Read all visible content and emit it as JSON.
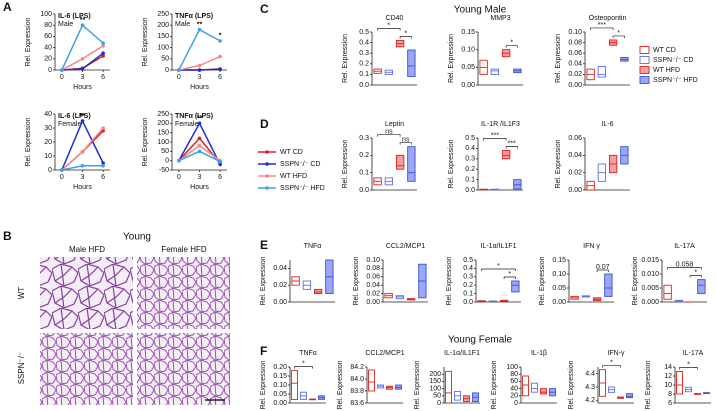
{
  "panel_labels": [
    "A",
    "B",
    "C",
    "D",
    "E",
    "F"
  ],
  "headings": {
    "B": "Young",
    "C": "Young Male",
    "F": "Young Female"
  },
  "histology": {
    "columns": [
      "Male HFD",
      "Female HFD"
    ],
    "rows": [
      "WT",
      "SSPN⁻/⁻"
    ]
  },
  "box_style": {
    "colors": [
      "#e0201b",
      "#5b6ee8",
      "#e0201b",
      "#3d4fd6"
    ],
    "fills": [
      "#ffffff",
      "#ffffff",
      "#f4a0a0",
      "#9aa8f4"
    ]
  },
  "chart_data": [
    {
      "type": "line",
      "title": "IL-6 (LPS)",
      "subtitle": "Male",
      "xlabel": "Hours",
      "ylabel": "Rel. Expression",
      "x": [
        0,
        3,
        6
      ],
      "xlim": [
        -1,
        7
      ],
      "xticks": [
        0,
        3,
        6
      ],
      "ylim": [
        0,
        100
      ],
      "yticks": [
        0,
        20,
        40,
        60,
        80,
        100
      ],
      "series": [
        {
          "name": "WT CD",
          "color": "#e0201b",
          "values": [
            0,
            3,
            25
          ]
        },
        {
          "name": "SSPN⁻/⁻ CD",
          "color": "#1a2fd6",
          "values": [
            0,
            2,
            30
          ]
        },
        {
          "name": "WT HFD",
          "color": "#f08a8a",
          "values": [
            0,
            20,
            43
          ]
        },
        {
          "name": "SSPN⁻/⁻ HFD",
          "color": "#3fa0e8",
          "values": [
            0,
            80,
            48
          ]
        }
      ],
      "annotations": [
        {
          "text": "**",
          "at": 1
        }
      ]
    },
    {
      "type": "line",
      "title": "TNFα (LPS)",
      "subtitle": "Male",
      "xlabel": "Hours",
      "ylabel": "Rel. Expression",
      "x": [
        0,
        3,
        6
      ],
      "xlim": [
        -1,
        7
      ],
      "xticks": [
        0,
        3,
        6
      ],
      "ylim": [
        0,
        250
      ],
      "yticks": [
        0,
        50,
        100,
        150,
        200,
        250
      ],
      "series": [
        {
          "name": "WT CD",
          "color": "#e0201b",
          "values": [
            0,
            0,
            5
          ]
        },
        {
          "name": "SSPN⁻/⁻ CD",
          "color": "#1a2fd6",
          "values": [
            0,
            0,
            3
          ]
        },
        {
          "name": "WT HFD",
          "color": "#f08a8a",
          "values": [
            0,
            20,
            60
          ]
        },
        {
          "name": "SSPN⁻/⁻ HFD",
          "color": "#3fa0e8",
          "values": [
            0,
            180,
            130
          ]
        }
      ],
      "annotations": [
        {
          "text": "**",
          "at": 1
        },
        {
          "text": "*",
          "at": 2
        }
      ]
    },
    {
      "type": "line",
      "title": "IL-6 (LPS)",
      "subtitle": "Female",
      "xlabel": "Hours",
      "ylabel": "Rel. Expression",
      "x": [
        0,
        3,
        6
      ],
      "xlim": [
        -1,
        7
      ],
      "xticks": [
        0,
        3,
        6
      ],
      "ylim": [
        0,
        40
      ],
      "yticks": [
        0,
        10,
        20,
        30,
        40
      ],
      "series": [
        {
          "name": "WT CD",
          "color": "#e0201b",
          "values": [
            0,
            13,
            28
          ]
        },
        {
          "name": "SSPN⁻/⁻ CD",
          "color": "#1a2fd6",
          "values": [
            0,
            35,
            5
          ]
        },
        {
          "name": "WT HFD",
          "color": "#f08a8a",
          "values": [
            0,
            13,
            30
          ]
        },
        {
          "name": "SSPN⁻/⁻ HFD",
          "color": "#3fa0e8",
          "values": [
            0,
            3,
            3
          ]
        }
      ],
      "annotations": [
        {
          "text": "**",
          "at": 1
        }
      ]
    },
    {
      "type": "line",
      "title": "TNFα (LPS)",
      "subtitle": "Female",
      "xlabel": "Hours",
      "ylabel": "Rel. Expression",
      "x": [
        0,
        3,
        6
      ],
      "xlim": [
        -1,
        7
      ],
      "xticks": [
        0,
        3,
        6
      ],
      "ylim": [
        -50,
        250
      ],
      "yticks": [
        -50,
        0,
        50,
        100,
        150,
        200,
        250
      ],
      "series": [
        {
          "name": "WT CD",
          "color": "#e0201b",
          "values": [
            0,
            120,
            -15
          ]
        },
        {
          "name": "SSPN⁻/⁻ CD",
          "color": "#1a2fd6",
          "values": [
            0,
            200,
            -20
          ]
        },
        {
          "name": "WT HFD",
          "color": "#f08a8a",
          "values": [
            0,
            80,
            0
          ]
        },
        {
          "name": "SSPN⁻/⁻ HFD",
          "color": "#3fa0e8",
          "values": [
            0,
            50,
            -5
          ]
        }
      ],
      "annotations": [
        {
          "text": "**",
          "at": 1
        }
      ]
    },
    {
      "type": "box",
      "title": "CD40",
      "ylabel": "Rel. Expression",
      "ylim": [
        0,
        0.5
      ],
      "yticks": [
        {
          "value": 0,
          "label": "0.0"
        },
        0.1,
        0.2,
        0.3,
        0.4,
        0.5
      ],
      "boxes": [
        [
          0.11,
          0.13,
          0.15
        ],
        [
          0.1,
          0.12,
          0.14
        ],
        [
          0.36,
          0.39,
          0.42
        ],
        [
          0.08,
          0.18,
          0.33
        ]
      ],
      "annotations": [
        {
          "text": "*",
          "groups": [
            0,
            2
          ]
        },
        {
          "text": "*",
          "groups": [
            2,
            3
          ]
        }
      ]
    },
    {
      "type": "box",
      "title": "MMP3",
      "ylabel": "Rel. Expression",
      "ylim": [
        0,
        0.15
      ],
      "yticks": [
        {
          "value": 0,
          "label": "0.00"
        },
        0.05,
        {
          "value": 0.1,
          "label": "0.10"
        },
        0.15
      ],
      "boxes": [
        [
          0.03,
          0.05,
          0.07
        ],
        [
          0.03,
          0.04,
          0.045
        ],
        [
          0.08,
          0.09,
          0.1
        ],
        [
          0.035,
          0.04,
          0.045
        ]
      ],
      "annotations": [
        {
          "text": "*",
          "groups": [
            2,
            3
          ]
        }
      ]
    },
    {
      "type": "box",
      "title": "Osteopontin",
      "ylabel": "Rel. Expression",
      "ylim": [
        0,
        0.1
      ],
      "yticks": [
        {
          "value": 0,
          "label": "0.00"
        },
        0.02,
        0.04,
        0.06,
        0.08,
        {
          "value": 0.1,
          "label": "0.10"
        }
      ],
      "boxes": [
        [
          0.01,
          0.02,
          0.03
        ],
        [
          0.015,
          0.02,
          0.035
        ],
        [
          0.075,
          0.08,
          0.085
        ],
        [
          0.045,
          0.048,
          0.052
        ]
      ],
      "annotations": [
        {
          "text": "***",
          "groups": [
            0,
            2
          ]
        },
        {
          "text": "*",
          "groups": [
            2,
            3
          ]
        }
      ]
    },
    {
      "type": "box",
      "title": "Leptin",
      "ylabel": "Rel. Expression",
      "ylim": [
        0,
        0.3
      ],
      "yticks": [
        {
          "value": 0,
          "label": "0.0"
        },
        0.1,
        0.2,
        0.3
      ],
      "boxes": [
        [
          0.03,
          0.05,
          0.07
        ],
        [
          0.03,
          0.05,
          0.07
        ],
        [
          0.12,
          0.14,
          0.2
        ],
        [
          0.05,
          0.1,
          0.25
        ]
      ],
      "annotations": [
        {
          "text": "ns",
          "groups": [
            0,
            2
          ]
        },
        {
          "text": "ns",
          "groups": [
            2,
            3
          ]
        }
      ]
    },
    {
      "type": "box",
      "title": "IL-1R /IL1F3",
      "ylabel": "Rel. Expression",
      "ylim": [
        0,
        0.5
      ],
      "yticks": [
        {
          "value": 0,
          "label": "0.0"
        },
        0.1,
        0.2,
        0.3,
        0.4,
        0.5
      ],
      "boxes": [
        [
          0.002,
          0.005,
          0.008
        ],
        [
          0.002,
          0.005,
          0.008
        ],
        [
          0.3,
          0.33,
          0.38
        ],
        [
          0.01,
          0.05,
          0.1
        ]
      ],
      "annotations": [
        {
          "text": "***",
          "groups": [
            0,
            2
          ]
        },
        {
          "text": "***",
          "groups": [
            2,
            3
          ]
        }
      ]
    },
    {
      "type": "box",
      "title": "IL-6",
      "ylabel": "Rel. Expression",
      "ylim": [
        0,
        0.06
      ],
      "yticks": [
        {
          "value": 0,
          "label": "0.00"
        },
        0.02,
        0.04,
        0.06
      ],
      "boxes": [
        [
          0,
          0.005,
          0.01
        ],
        [
          0.01,
          0.02,
          0.03
        ],
        [
          0.02,
          0.03,
          0.04
        ],
        [
          0.03,
          0.04,
          0.05
        ]
      ],
      "annotations": []
    },
    {
      "type": "box",
      "title": "TNFα",
      "ylabel": "Rel. Expression",
      "ylim": [
        0,
        0.05
      ],
      "yticks": [
        {
          "value": 0,
          "label": "0.00"
        },
        0.02,
        0.04
      ],
      "boxes": [
        [
          0.02,
          0.025,
          0.03
        ],
        [
          0.015,
          0.02,
          0.025
        ],
        [
          0.01,
          0.012,
          0.015
        ],
        [
          0.01,
          0.03,
          0.05
        ]
      ],
      "annotations": []
    },
    {
      "type": "box",
      "title": "CCL2/MCP1",
      "ylabel": "Rel. Expression",
      "ylim": [
        0,
        0.1
      ],
      "yticks": [
        {
          "value": 0,
          "label": "0.00"
        },
        0.02,
        0.04,
        0.06,
        0.08,
        {
          "value": 0.1,
          "label": "0.10"
        }
      ],
      "boxes": [
        [
          0.01,
          0.015,
          0.02
        ],
        [
          0.008,
          0.012,
          0.015
        ],
        [
          0.005,
          0.006,
          0.008
        ],
        [
          0.01,
          0.05,
          0.09
        ]
      ],
      "annotations": []
    },
    {
      "type": "box",
      "title": "IL-1α/IL1F1",
      "ylabel": "Rel. Expression",
      "ylim": [
        0,
        0.5
      ],
      "yticks": [
        {
          "value": 0,
          "label": "0.0"
        },
        0.1,
        0.2,
        0.3,
        0.4,
        0.5
      ],
      "boxes": [
        [
          0.005,
          0.01,
          0.015
        ],
        [
          0.008,
          0.01,
          0.012
        ],
        [
          0.01,
          0.015,
          0.02
        ],
        [
          0.12,
          0.2,
          0.25
        ]
      ],
      "annotations": [
        {
          "text": "*",
          "groups": [
            0,
            3
          ]
        },
        {
          "text": "*",
          "groups": [
            2,
            3
          ]
        }
      ]
    },
    {
      "type": "box",
      "title": "IFN γ",
      "ylabel": "Rel. Expression",
      "ylim": [
        0,
        0.15
      ],
      "yticks": [
        {
          "value": 0,
          "label": "0.00"
        },
        0.05,
        {
          "value": 0.1,
          "label": "0.10"
        },
        0.15
      ],
      "boxes": [
        [
          0.01,
          0.015,
          0.02
        ],
        [
          0.018,
          0.02,
          0.022
        ],
        [
          0.005,
          0.01,
          0.015
        ],
        [
          0.02,
          0.05,
          0.1
        ]
      ],
      "annotations": [
        {
          "text": "0.07",
          "groups": [
            2,
            3
          ]
        }
      ]
    },
    {
      "type": "box",
      "title": "IL-17A",
      "ylabel": "Rel. Expression",
      "ylim": [
        0,
        0.015
      ],
      "yticks": [
        {
          "value": 0,
          "label": "0.000"
        },
        0.005,
        {
          "value": 0.01,
          "label": "0.010"
        },
        0.015
      ],
      "boxes": [
        [
          0.001,
          0.003,
          0.006
        ],
        [
          0.0004,
          0.0005,
          0.0006
        ],
        [
          0,
          0,
          0
        ],
        [
          0.003,
          0.006,
          0.008
        ]
      ],
      "annotations": [
        {
          "text": "0.058",
          "groups": [
            0,
            3
          ]
        },
        {
          "text": "*",
          "groups": [
            2,
            3
          ]
        }
      ]
    },
    {
      "type": "box",
      "title": "TNFα",
      "ylabel": "Rel. Expression",
      "ylim": [
        0,
        0.2
      ],
      "yticks": [
        {
          "value": 0,
          "label": "0.00"
        },
        0.05,
        {
          "value": 0.1,
          "label": "0.10"
        },
        0.15,
        {
          "value": 0.2,
          "label": "0.20"
        }
      ],
      "boxes": [
        [
          0.02,
          0.11,
          0.18
        ],
        [
          0.02,
          0.04,
          0.06
        ],
        [
          0.018,
          0.02,
          0.022
        ],
        [
          0.02,
          0.03,
          0.04
        ]
      ],
      "annotations": [
        {
          "text": "*",
          "groups": [
            0,
            2
          ]
        }
      ]
    },
    {
      "type": "box",
      "title": "CCL2/MCP1",
      "ylabel": "Rel. Expression",
      "ylim": [
        83.6,
        84.2
      ],
      "yticks": [
        83.6,
        83.8,
        {
          "value": 84,
          "label": "84.0"
        },
        84.2
      ],
      "boxes": [
        [
          83.8,
          83.95,
          84.15
        ],
        [
          83.85,
          83.88,
          83.9
        ],
        [
          83.83,
          83.86,
          83.88
        ],
        [
          83.83,
          83.86,
          83.9
        ]
      ],
      "annotations": []
    },
    {
      "type": "box",
      "title": "IL-1α/IL1F1",
      "ylabel": "Rel. Expression",
      "ylim": [
        0,
        250
      ],
      "yticks": [
        0,
        50,
        100,
        150,
        200
      ],
      "boxes": [
        [
          0,
          70,
          220
        ],
        [
          20,
          50,
          80
        ],
        [
          10,
          30,
          50
        ],
        [
          10,
          40,
          70
        ]
      ],
      "annotations": []
    },
    {
      "type": "box",
      "title": "IL-1β",
      "ylabel": "Rel. Expression",
      "ylim": [
        0,
        100
      ],
      "yticks": [
        0,
        20,
        40,
        60,
        80,
        100
      ],
      "boxes": [
        [
          20,
          50,
          75
        ],
        [
          30,
          40,
          55
        ],
        [
          25,
          30,
          40
        ],
        [
          20,
          30,
          40
        ]
      ],
      "annotations": []
    },
    {
      "type": "box",
      "title": "IFN-γ",
      "ylabel": "Rel. Expression",
      "ylim": [
        4.18,
        4.45
      ],
      "yticks": [
        4.2,
        4.3,
        4.4
      ],
      "boxes": [
        [
          4.23,
          4.33,
          4.43
        ],
        [
          4.26,
          4.28,
          4.3
        ],
        [
          4.215,
          4.22,
          4.225
        ],
        [
          4.22,
          4.23,
          4.25
        ]
      ],
      "annotations": [
        {
          "text": "*",
          "groups": [
            0,
            2
          ]
        }
      ]
    },
    {
      "type": "box",
      "title": "IL-17A",
      "ylabel": "Rel. Expression",
      "ylim": [
        6,
        14
      ],
      "yticks": [
        6,
        8,
        10,
        12,
        14
      ],
      "boxes": [
        [
          8,
          10,
          13
        ],
        [
          8.5,
          9,
          9.5
        ],
        [
          7.9,
          8,
          8.1
        ],
        [
          8.1,
          8.2,
          8.3
        ]
      ],
      "annotations": [
        {
          "text": "*",
          "groups": [
            0,
            2
          ]
        }
      ]
    }
  ]
}
